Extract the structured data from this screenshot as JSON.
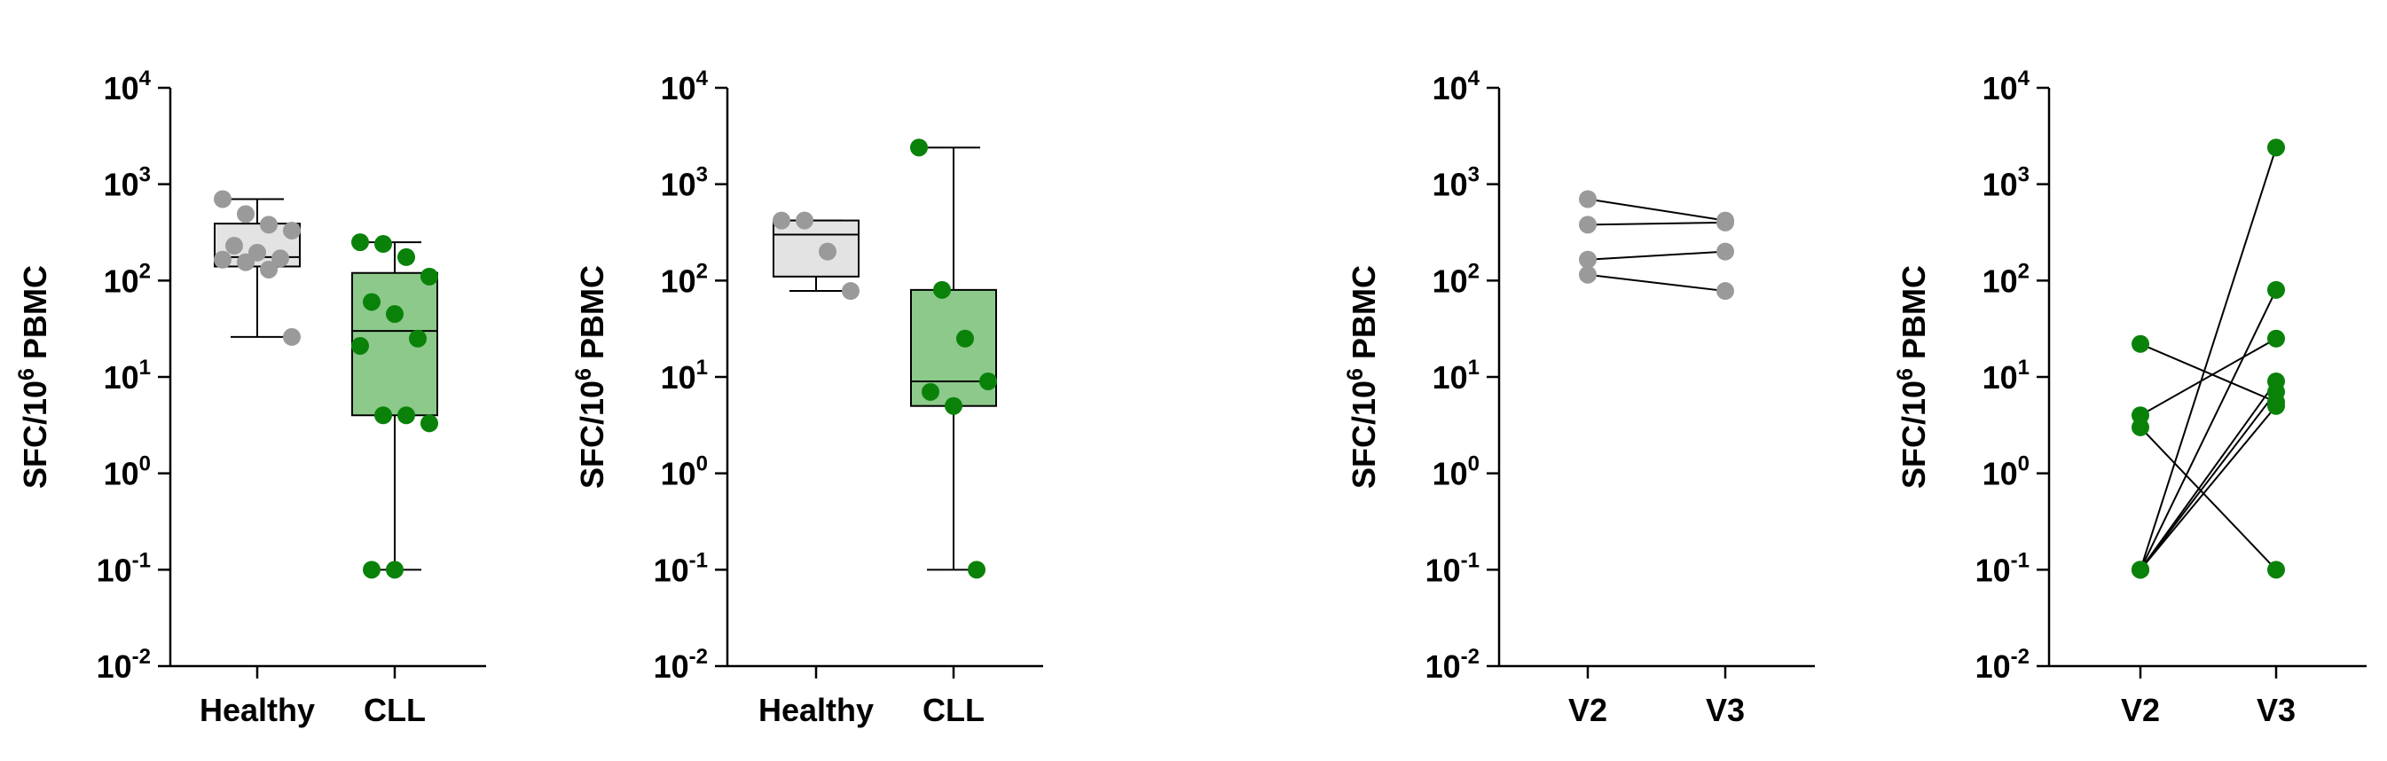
{
  "colors": {
    "healthy_point": "#9a9a9a",
    "healthy_box": "#e3e3e3",
    "cll_point": "#0a820a",
    "cll_box": "#8cc98a",
    "axis": "#000000"
  },
  "chart_data": [
    {
      "type": "box",
      "ylabel": "SFC/10",
      "ylabel_sup": "6",
      "ylabel_suffix": " PBMC",
      "yscale": "log",
      "ylim": [
        0.01,
        10000
      ],
      "ytick_base": [
        "10",
        "10",
        "10",
        "10",
        "10",
        "10",
        "10"
      ],
      "ytick_exp": [
        "-2",
        "-1",
        "0",
        "1",
        "2",
        "3",
        "4"
      ],
      "categories": [
        "Healthy",
        "CLL"
      ],
      "groups": [
        {
          "name": "Healthy",
          "color_key": "healthy",
          "box": {
            "min": 26,
            "q1": 140,
            "median": 175,
            "q3": 390,
            "max": 700
          },
          "points": [
            700,
            490,
            380,
            330,
            230,
            195,
            170,
            165,
            155,
            130,
            26
          ]
        },
        {
          "name": "CLL",
          "color_key": "cll",
          "box": {
            "min": 0.1,
            "q1": 4,
            "median": 30,
            "q3": 120,
            "max": 250
          },
          "points": [
            250,
            240,
            175,
            110,
            60,
            45,
            25,
            21,
            4,
            4,
            3.3,
            0.1,
            0.1
          ]
        }
      ]
    },
    {
      "type": "box",
      "ylabel": "SFC/10",
      "ylabel_sup": "6",
      "ylabel_suffix": " PBMC",
      "yscale": "log",
      "ylim": [
        0.01,
        10000
      ],
      "ytick_base": [
        "10",
        "10",
        "10",
        "10",
        "10",
        "10",
        "10"
      ],
      "ytick_exp": [
        "-2",
        "-1",
        "0",
        "1",
        "2",
        "3",
        "4"
      ],
      "categories": [
        "Healthy",
        "CLL"
      ],
      "groups": [
        {
          "name": "Healthy",
          "color_key": "healthy",
          "box": {
            "min": 78,
            "q1": 110,
            "median": 300,
            "q3": 420,
            "max": 420
          },
          "points": [
            420,
            420,
            200,
            78
          ]
        },
        {
          "name": "CLL",
          "color_key": "cll",
          "box": {
            "min": 0.1,
            "q1": 5,
            "median": 9,
            "q3": 80,
            "max": 2400
          },
          "points": [
            2400,
            80,
            25,
            9,
            7,
            5,
            0.1
          ]
        }
      ]
    },
    {
      "type": "paired-line",
      "ylabel": "SFC/10",
      "ylabel_sup": "6",
      "ylabel_suffix": " PBMC",
      "yscale": "log",
      "ylim": [
        0.01,
        10000
      ],
      "ytick_base": [
        "10",
        "10",
        "10",
        "10",
        "10",
        "10",
        "10"
      ],
      "ytick_exp": [
        "-2",
        "-1",
        "0",
        "1",
        "2",
        "3",
        "4"
      ],
      "categories": [
        "V2",
        "V3"
      ],
      "color_key": "healthy",
      "pairs": [
        [
          700,
          420
        ],
        [
          380,
          400
        ],
        [
          165,
          200
        ],
        [
          115,
          78
        ]
      ]
    },
    {
      "type": "paired-line",
      "ylabel": "SFC/10",
      "ylabel_sup": "6",
      "ylabel_suffix": " PBMC",
      "yscale": "log",
      "ylim": [
        0.01,
        10000
      ],
      "ytick_base": [
        "10",
        "10",
        "10",
        "10",
        "10",
        "10",
        "10"
      ],
      "ytick_exp": [
        "-2",
        "-1",
        "0",
        "1",
        "2",
        "3",
        "4"
      ],
      "categories": [
        "V2",
        "V3"
      ],
      "color_key": "cll",
      "pairs": [
        [
          22,
          5.5
        ],
        [
          4,
          25
        ],
        [
          3,
          0.1
        ],
        [
          0.1,
          2400
        ],
        [
          0.1,
          80
        ],
        [
          0.1,
          9
        ],
        [
          0.1,
          7
        ],
        [
          0.1,
          5
        ]
      ]
    }
  ]
}
